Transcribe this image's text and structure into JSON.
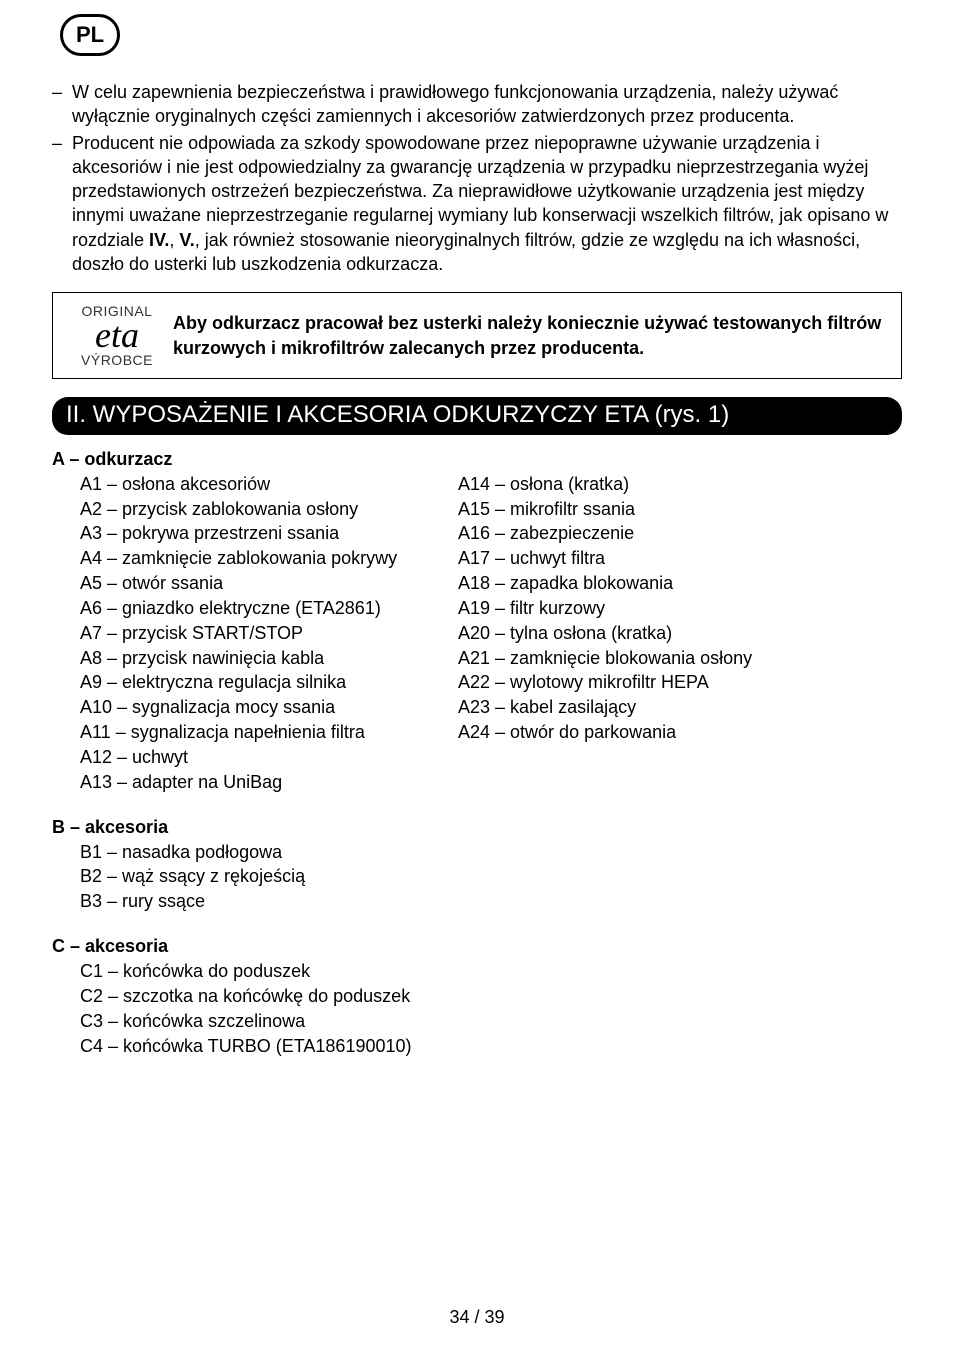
{
  "lang_badge": "PL",
  "bullets": [
    "W celu zapewnienia bezpieczeństwa i prawidłowego funkcjonowania urządzenia, należy używać wyłącznie oryginalnych części zamiennych i akcesoriów zatwierdzonych przez producenta.",
    "Producent nie odpowiada za szkody spowodowane przez niepoprawne używanie urządzenia i akcesoriów i nie jest odpowiedzialny za gwarancję urządzenia w przypadku nieprzestrzegania wyżej przedstawionych ostrzeżeń bezpieczeństwa. Za nieprawidłowe użytkowanie urządzenia jest między innymi uważane nieprzestrzeganie regularnej wymiany lub konserwacji wszelkich filtrów, jak opisano w rozdziale <b>IV.</b>, <b>V.</b>, jak również stosowanie nieoryginalnych filtrów, gdzie ze względu na ich własności, doszło do usterki lub uszkodzenia odkurzacza."
  ],
  "notice": {
    "logo_top": "ORIGINAL",
    "logo_mid": "eta",
    "logo_bot": "VÝROBCE",
    "text": "Aby odkurzacz pracował bez usterki należy koniecznie używać testowanych filtrów kurzowych i mikrofiltrów zalecanych przez producenta."
  },
  "section_title": "II. WYPOSAŻENIE I AKCESORIA ODKURZYCZY ETA (rys. 1)",
  "groupA": {
    "head": "A – odkurzacz",
    "col1": [
      "A1 – osłona akcesoriów",
      "A2 – przycisk zablokowania osłony",
      "A3 – pokrywa przestrzeni ssania",
      "A4 – zamknięcie zablokowania pokrywy",
      "A5 – otwór ssania",
      "A6 – gniazdko elektryczne (ETA2861)",
      "A7 – przycisk START/STOP",
      "A8 – przycisk nawinięcia kabla",
      "A9 – elektryczna regulacja silnika",
      "A10 – sygnalizacja mocy ssania",
      "A11 – sygnalizacja napełnienia filtra",
      "A12 – uchwyt",
      "A13 – adapter na UniBag"
    ],
    "col2": [
      "A14 – osłona (kratka)",
      "A15 – mikrofiltr ssania",
      "A16 – zabezpieczenie",
      "A17 – uchwyt filtra",
      "A18 – zapadka blokowania",
      "A19 – filtr kurzowy",
      "A20 – tylna osłona (kratka)",
      "A21 – zamknięcie blokowania osłony",
      "A22 – wylotowy mikrofiltr HEPA",
      "A23 – kabel zasilający",
      "A24 – otwór do parkowania"
    ]
  },
  "groupB": {
    "head": "B  – akcesoria",
    "items": [
      "B1 – nasadka podłogowa",
      "B2 – wąż ssący z rękojeścią",
      "B3 – rury ssące"
    ]
  },
  "groupC": {
    "head": "C  – akcesoria",
    "items": [
      "C1 – końcówka do poduszek",
      "C2 – szczotka na końcówkę do poduszek",
      "C3 – końcówka szczelinowa",
      "C4 – końcówka TURBO (ETA186190010)"
    ]
  },
  "footer": "34 / 39"
}
